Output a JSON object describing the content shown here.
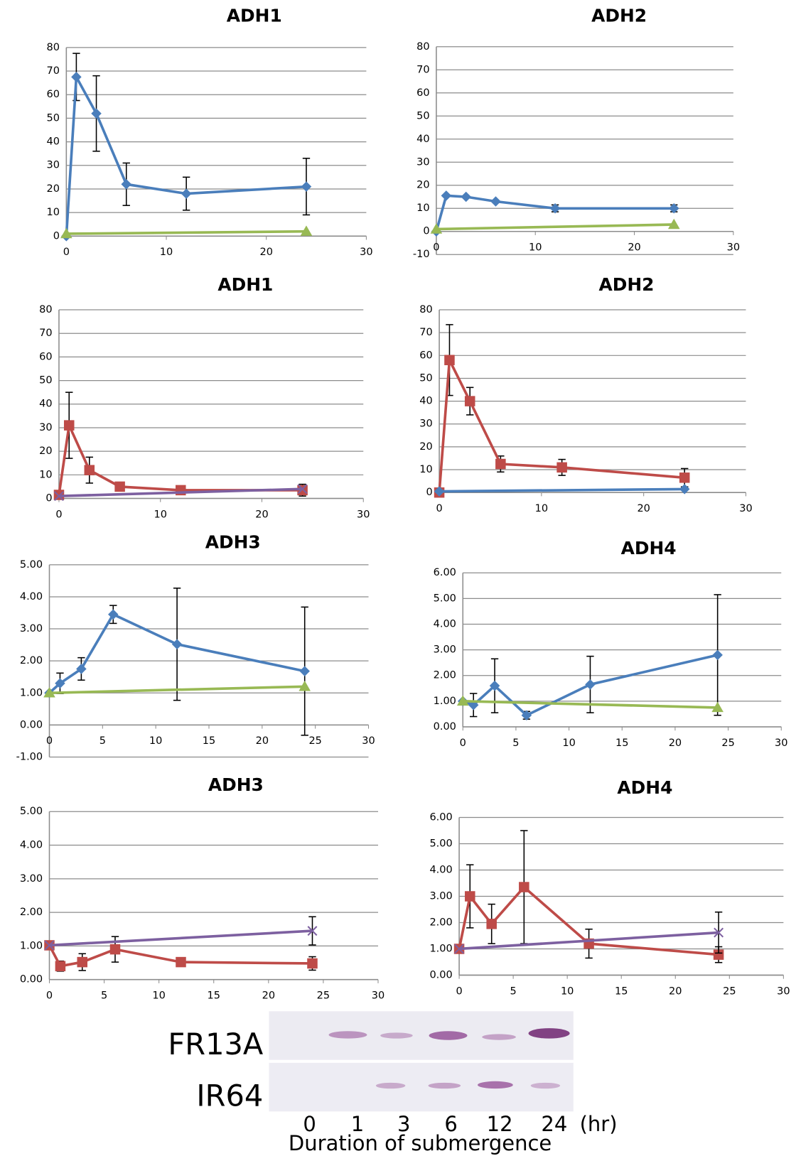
{
  "chart_data": [
    {
      "type": "line",
      "title": "ADH1",
      "x": [
        0,
        1,
        3,
        6,
        12,
        24
      ],
      "xlim": [
        0,
        30
      ],
      "xticks": [
        0,
        10,
        20,
        30
      ],
      "ylim": [
        0,
        80
      ],
      "yticks": [
        0,
        10,
        20,
        30,
        40,
        50,
        60,
        70,
        80
      ],
      "grid": true,
      "series": [
        {
          "color": "#4a7ebb",
          "marker": "diamond",
          "values": [
            0,
            67.5,
            52,
            22,
            18,
            21
          ],
          "errors": [
            null,
            10,
            16,
            9,
            7,
            12
          ]
        },
        {
          "color": "#98b954",
          "marker": "triangle",
          "x": [
            0,
            24
          ],
          "values": [
            1,
            2
          ],
          "errors": [
            null,
            null
          ]
        }
      ]
    },
    {
      "type": "line",
      "title": "ADH2",
      "x": [
        0,
        1,
        3,
        6,
        12,
        24
      ],
      "xlim": [
        0,
        30
      ],
      "xticks": [
        0,
        10,
        20,
        30
      ],
      "ylim": [
        -10,
        80
      ],
      "yticks": [
        -10,
        0,
        10,
        20,
        30,
        40,
        50,
        60,
        70,
        80
      ],
      "grid": true,
      "series": [
        {
          "color": "#4a7ebb",
          "marker": "diamond",
          "values": [
            0,
            15.5,
            15,
            13,
            10,
            10
          ],
          "errors": [
            null,
            null,
            null,
            null,
            1.5,
            1.5
          ]
        },
        {
          "color": "#98b954",
          "marker": "triangle",
          "x": [
            0,
            24
          ],
          "values": [
            1,
            3
          ],
          "errors": [
            null,
            null
          ]
        }
      ]
    },
    {
      "type": "line",
      "title": "ADH1",
      "x": [
        0,
        1,
        3,
        6,
        12,
        24
      ],
      "xlim": [
        0,
        30
      ],
      "xticks": [
        0,
        10,
        20,
        30
      ],
      "ylim": [
        0,
        80
      ],
      "yticks": [
        0,
        10,
        20,
        30,
        40,
        50,
        60,
        70,
        80
      ],
      "grid": true,
      "series": [
        {
          "color": "#be4b48",
          "marker": "square",
          "values": [
            1.5,
            31,
            12,
            5,
            3.5,
            3.5
          ],
          "errors": [
            null,
            14,
            5.5,
            null,
            null,
            2.5
          ]
        },
        {
          "color": "#7d60a0",
          "marker": "x",
          "x": [
            0,
            24
          ],
          "values": [
            1,
            4
          ],
          "errors": [
            null,
            null
          ]
        }
      ]
    },
    {
      "type": "line",
      "title": "ADH2",
      "x": [
        0,
        1,
        3,
        6,
        12,
        24
      ],
      "xlim": [
        0,
        30
      ],
      "xticks": [
        0,
        10,
        20,
        30
      ],
      "ylim": [
        0,
        80
      ],
      "yticks": [
        0,
        10,
        20,
        30,
        40,
        50,
        60,
        70,
        80
      ],
      "grid": true,
      "series": [
        {
          "color": "#be4b48",
          "marker": "square",
          "values": [
            0,
            58,
            40,
            12.5,
            11,
            6.5
          ],
          "errors": [
            null,
            15.5,
            6,
            3.5,
            3.5,
            4
          ]
        },
        {
          "color": "#4a7ebb",
          "marker": "diamond",
          "x": [
            0,
            24
          ],
          "values": [
            0.5,
            1.5
          ],
          "errors": [
            null,
            null
          ]
        }
      ]
    },
    {
      "type": "line",
      "title": "ADH3",
      "x": [
        0,
        1,
        3,
        6,
        12,
        24
      ],
      "xlim": [
        0,
        30
      ],
      "xticks": [
        0,
        5,
        10,
        15,
        20,
        25,
        30
      ],
      "ylim": [
        -1,
        5
      ],
      "yticks": [
        {
          "value": -1,
          "label": "-1.00"
        },
        {
          "value": 0,
          "label": "0.00"
        },
        {
          "value": 1,
          "label": "1.00"
        },
        {
          "value": 2,
          "label": "2.00"
        },
        {
          "value": 3,
          "label": "3.00"
        },
        {
          "value": 4,
          "label": "4.00"
        },
        {
          "value": 5,
          "label": "5.00"
        }
      ],
      "grid": true,
      "series": [
        {
          "color": "#4a7ebb",
          "marker": "diamond",
          "values": [
            1,
            1.3,
            1.75,
            3.45,
            2.52,
            1.68
          ],
          "errors": [
            null,
            0.32,
            0.35,
            0.28,
            1.75,
            2
          ]
        },
        {
          "color": "#98b954",
          "marker": "triangle",
          "x": [
            0,
            24
          ],
          "values": [
            1,
            1.2
          ],
          "errors": [
            null,
            null
          ]
        }
      ]
    },
    {
      "type": "line",
      "title": "ADH4",
      "x": [
        0,
        1,
        3,
        6,
        12,
        24
      ],
      "xlim": [
        0,
        30
      ],
      "xticks": [
        0,
        5,
        10,
        15,
        20,
        25,
        30
      ],
      "ylim": [
        0,
        6
      ],
      "yticks": [
        {
          "value": 0,
          "label": "0.00"
        },
        {
          "value": 1,
          "label": "1.00"
        },
        {
          "value": 2,
          "label": "2.00"
        },
        {
          "value": 3,
          "label": "3.00"
        },
        {
          "value": 4,
          "label": "4.00"
        },
        {
          "value": 5,
          "label": "5.00"
        },
        {
          "value": 6,
          "label": "6.00"
        }
      ],
      "grid": true,
      "series": [
        {
          "color": "#4a7ebb",
          "marker": "diamond",
          "values": [
            1,
            0.85,
            1.6,
            0.45,
            1.65,
            2.8
          ],
          "errors": [
            null,
            0.45,
            1.05,
            0.15,
            1.1,
            2.35
          ]
        },
        {
          "color": "#98b954",
          "marker": "triangle",
          "x": [
            0,
            24
          ],
          "values": [
            1,
            0.75
          ],
          "errors": [
            null,
            null
          ]
        }
      ]
    },
    {
      "type": "line",
      "title": "ADH3",
      "x": [
        0,
        1,
        3,
        6,
        12,
        24
      ],
      "xlim": [
        0,
        30
      ],
      "xticks": [
        0,
        5,
        10,
        15,
        20,
        25,
        30
      ],
      "ylim": [
        0,
        5
      ],
      "yticks": [
        {
          "value": 0,
          "label": "0.00"
        },
        {
          "value": 1,
          "label": "1.00"
        },
        {
          "value": 2,
          "label": "2.00"
        },
        {
          "value": 3,
          "label": "3.00"
        },
        {
          "value": 4,
          "label": "4.00"
        },
        {
          "value": 5,
          "label": "5.00"
        }
      ],
      "grid": true,
      "series": [
        {
          "color": "#be4b48",
          "marker": "square",
          "values": [
            1.02,
            0.4,
            0.52,
            0.9,
            0.52,
            0.48
          ],
          "errors": [
            null,
            0.15,
            0.25,
            0.38,
            0.1,
            0.2
          ]
        },
        {
          "color": "#7d60a0",
          "marker": "x",
          "x": [
            0,
            24
          ],
          "values": [
            1.02,
            1.45
          ],
          "errors": [
            null,
            0.42
          ]
        }
      ]
    },
    {
      "type": "line",
      "title": "ADH4",
      "x": [
        0,
        1,
        3,
        6,
        12,
        24
      ],
      "xlim": [
        0,
        30
      ],
      "xticks": [
        0,
        5,
        10,
        15,
        20,
        25,
        30
      ],
      "ylim": [
        0,
        6
      ],
      "yticks": [
        {
          "value": 0,
          "label": "0.00"
        },
        {
          "value": 1,
          "label": "1.00"
        },
        {
          "value": 2,
          "label": "2.00"
        },
        {
          "value": 3,
          "label": "3.00"
        },
        {
          "value": 4,
          "label": "4.00"
        },
        {
          "value": 5,
          "label": "5.00"
        },
        {
          "value": 6,
          "label": "6.00"
        }
      ],
      "grid": true,
      "series": [
        {
          "color": "#be4b48",
          "marker": "square",
          "values": [
            1,
            3,
            1.95,
            3.35,
            1.2,
            0.78
          ],
          "errors": [
            null,
            1.2,
            0.75,
            2.15,
            0.55,
            0.3
          ]
        },
        {
          "color": "#7d60a0",
          "marker": "x",
          "x": [
            0,
            24
          ],
          "values": [
            1,
            1.62
          ],
          "errors": [
            null,
            0.78
          ]
        }
      ]
    }
  ],
  "blot": {
    "rows": [
      "FR13A",
      "IR64"
    ],
    "lanes": [
      "0",
      "1",
      "3",
      "6",
      "12",
      "24"
    ],
    "unit": "(hr)",
    "xlabel": "Duration of submergence"
  }
}
